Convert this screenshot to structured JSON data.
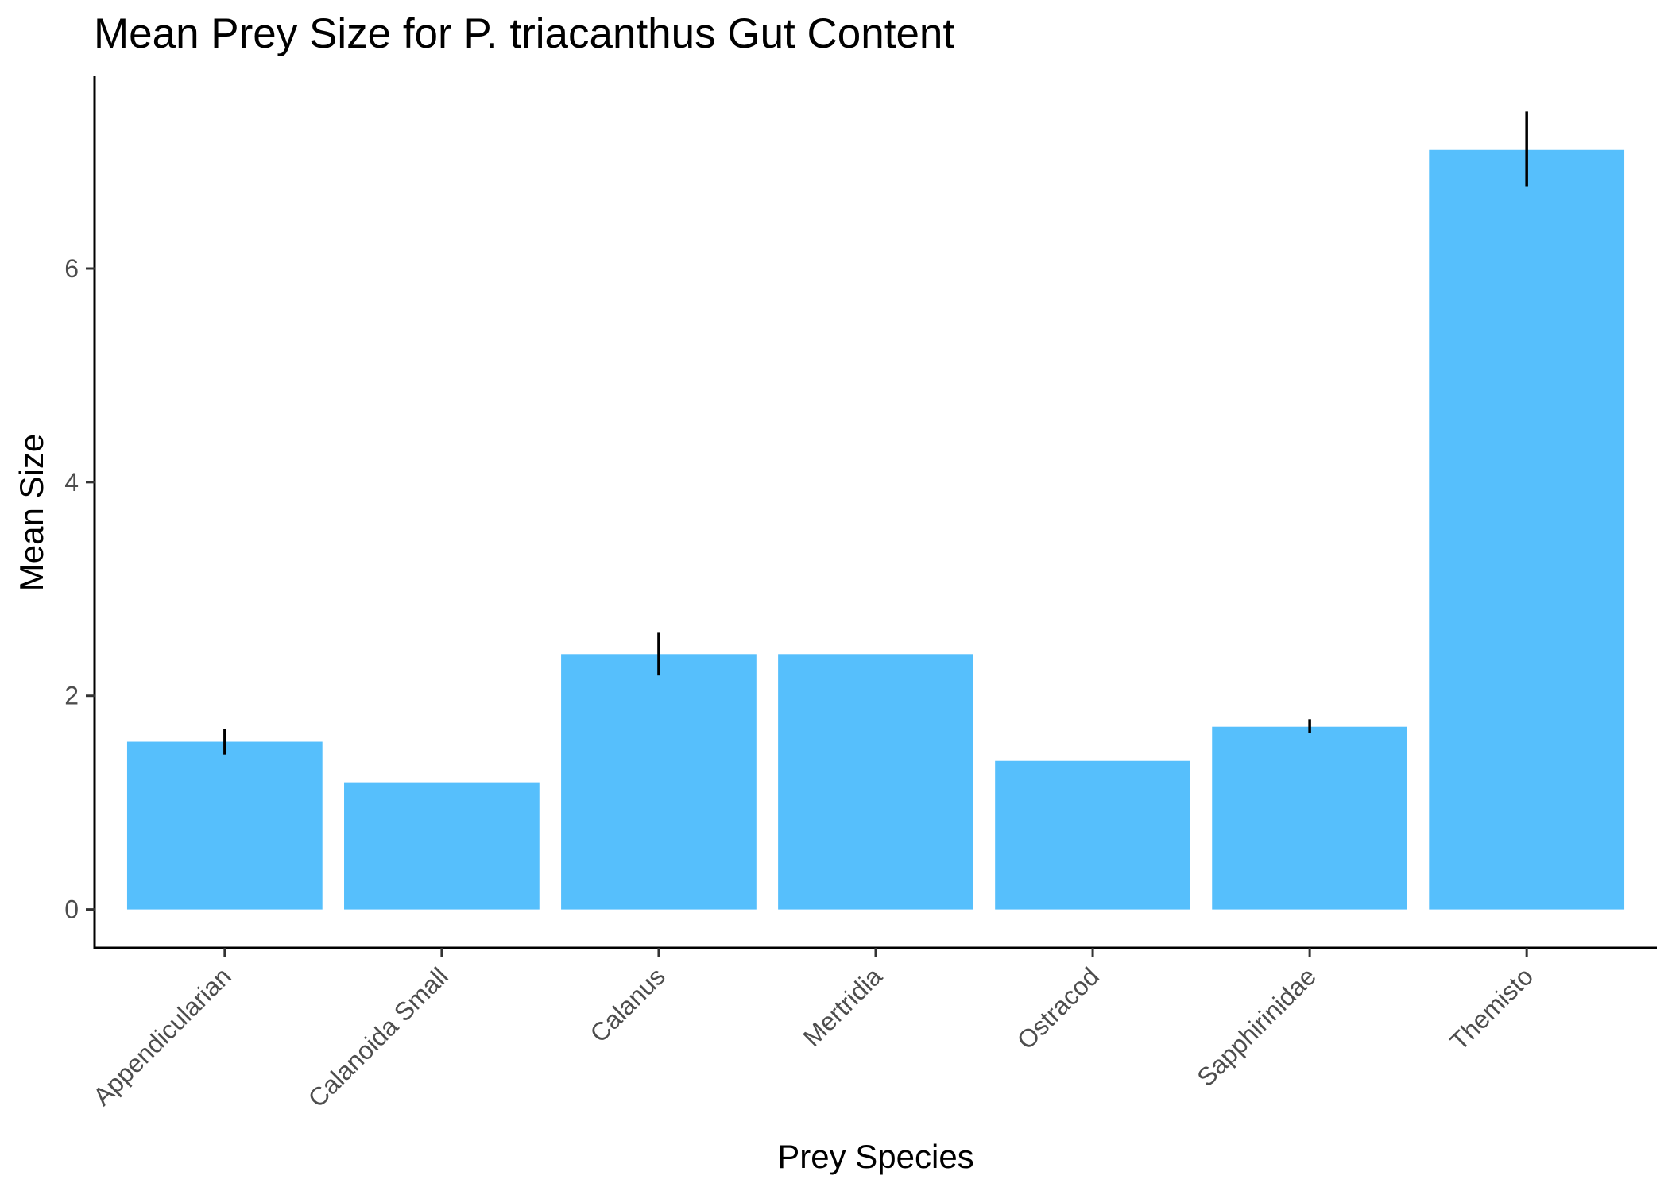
{
  "chart_data": {
    "type": "bar",
    "title": "Mean Prey Size for P. triacanthus Gut Content",
    "xlabel": "Prey Species",
    "ylabel": "Mean Size",
    "categories": [
      "Appendicularian",
      "Calanoida Small",
      "Calanus",
      "Mertridia",
      "Ostracod",
      "Sapphirinidae",
      "Themisto"
    ],
    "values": [
      1.57,
      1.19,
      2.39,
      2.39,
      1.39,
      1.71,
      7.11
    ],
    "error_low": [
      1.45,
      null,
      2.19,
      null,
      null,
      1.65,
      6.77
    ],
    "error_high": [
      1.69,
      null,
      2.59,
      null,
      null,
      1.78,
      7.47
    ],
    "yticks": [
      0,
      2,
      4,
      6
    ],
    "ylim": [
      -0.36,
      7.8
    ],
    "grid": false,
    "legend": "none",
    "bar_color": "#56BFFC",
    "error_bar_color": "#000000"
  }
}
